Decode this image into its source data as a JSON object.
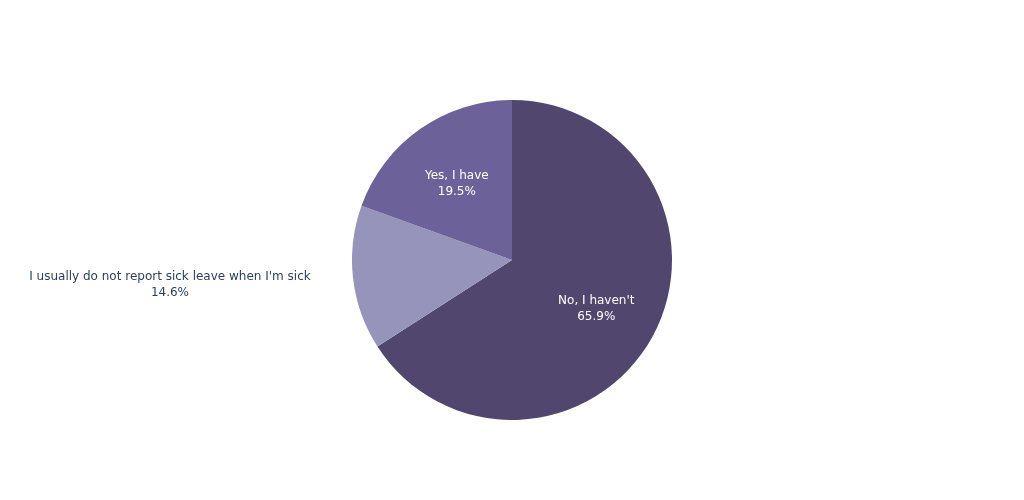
{
  "chart_data": {
    "type": "pie",
    "categories": [
      "No, I haven't",
      "I usually do not report sick leave when I'm sick",
      "Yes, I have"
    ],
    "values": [
      65.9,
      14.6,
      19.5
    ],
    "value_labels": [
      "65.9%",
      "14.6%",
      "19.5%"
    ],
    "colors": [
      "#51476e",
      "#9794bb",
      "#6c6199"
    ]
  }
}
